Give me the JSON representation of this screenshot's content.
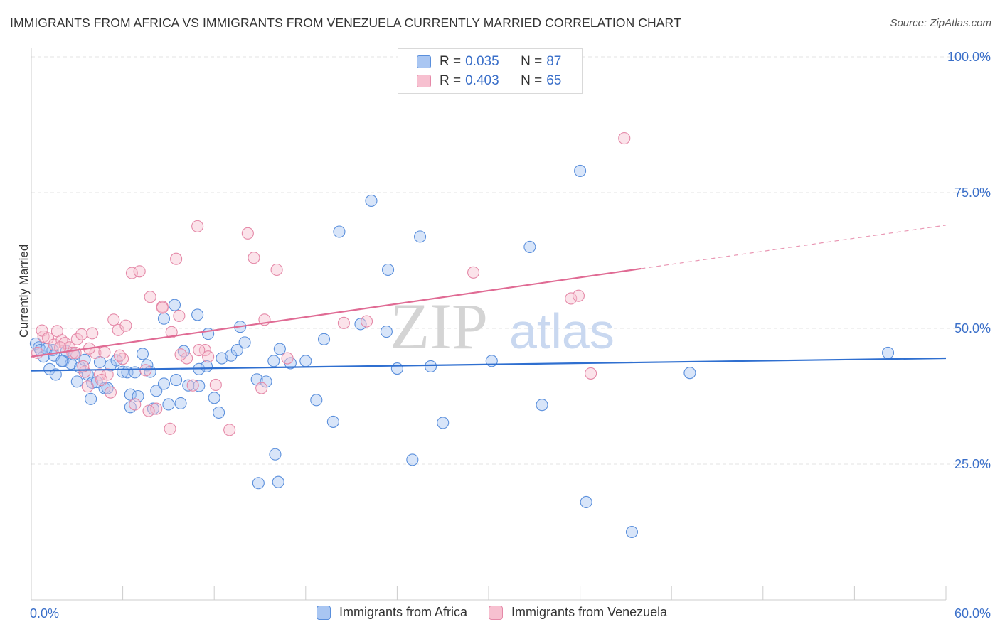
{
  "header": {
    "title": "IMMIGRANTS FROM AFRICA VS IMMIGRANTS FROM VENEZUELA CURRENTLY MARRIED CORRELATION CHART",
    "source_label": "Source: ZipAtlas.com"
  },
  "watermark": {
    "part1": "ZIP",
    "part2": "atlas"
  },
  "legend_top": {
    "rows": [
      {
        "r_label": "R = ",
        "r_value": "0.035",
        "n_label": "N = ",
        "n_value": "87",
        "color": "#a9c6f2",
        "border": "#5a8fdc"
      },
      {
        "r_label": "R = ",
        "r_value": "0.403",
        "n_label": "N = ",
        "n_value": "65",
        "color": "#f7c0d0",
        "border": "#e589a8"
      }
    ]
  },
  "legend_bottom": [
    {
      "label": "Immigrants from Africa",
      "color": "#a9c6f2",
      "border": "#5a8fdc"
    },
    {
      "label": "Immigrants from Venezuela",
      "color": "#f7c0d0",
      "border": "#e589a8"
    }
  ],
  "chart_data": {
    "type": "scatter",
    "ylabel": "Currently Married",
    "xlim": [
      0,
      60
    ],
    "ylim": [
      0,
      100
    ],
    "x_tick_labels": [
      "0.0%",
      "60.0%"
    ],
    "y_ticks": [
      25,
      50,
      75,
      100
    ],
    "y_tick_labels": [
      "25.0%",
      "50.0%",
      "75.0%",
      "100.0%"
    ],
    "grid": true,
    "legend_position": "top-center",
    "series": [
      {
        "name": "Immigrants from Africa",
        "color": "#5a8fdc",
        "fill": "#a9c6f2",
        "trend": {
          "x0": 0,
          "y0": 42.2,
          "x1": 60,
          "y1": 44.5,
          "color": "#2f6fd0"
        },
        "points": [
          [
            0.3,
            47.2
          ],
          [
            0.5,
            46.5
          ],
          [
            0.8,
            44.8
          ],
          [
            0.6,
            46.0
          ],
          [
            1.4,
            46.0
          ],
          [
            1.2,
            42.5
          ],
          [
            2.1,
            44.0
          ],
          [
            2.3,
            45.8
          ],
          [
            1.6,
            41.5
          ],
          [
            2.6,
            43.5
          ],
          [
            3.2,
            42.8
          ],
          [
            3.5,
            44.2
          ],
          [
            2.8,
            45.2
          ],
          [
            3.0,
            40.2
          ],
          [
            3.7,
            41.5
          ],
          [
            4.0,
            40.0
          ],
          [
            3.9,
            37.0
          ],
          [
            4.5,
            43.8
          ],
          [
            4.8,
            39.0
          ],
          [
            4.3,
            40.1
          ],
          [
            5.2,
            43.2
          ],
          [
            5.6,
            44.1
          ],
          [
            6.0,
            42.0
          ],
          [
            6.3,
            41.9
          ],
          [
            6.5,
            37.8
          ],
          [
            6.8,
            41.9
          ],
          [
            6.5,
            35.5
          ],
          [
            7.0,
            37.5
          ],
          [
            7.3,
            45.3
          ],
          [
            7.6,
            43.2
          ],
          [
            8.2,
            38.5
          ],
          [
            8.0,
            35.2
          ],
          [
            8.7,
            39.8
          ],
          [
            9.0,
            36.0
          ],
          [
            9.8,
            36.2
          ],
          [
            9.5,
            40.5
          ],
          [
            10.0,
            45.8
          ],
          [
            10.3,
            39.5
          ],
          [
            11.0,
            42.5
          ],
          [
            11.5,
            43.0
          ],
          [
            11.0,
            39.4
          ],
          [
            12.0,
            37.2
          ],
          [
            12.5,
            44.5
          ],
          [
            12.3,
            34.5
          ],
          [
            13.1,
            45.0
          ],
          [
            13.5,
            46.0
          ],
          [
            14.0,
            47.4
          ],
          [
            14.8,
            40.6
          ],
          [
            15.4,
            40.2
          ],
          [
            15.9,
            44.0
          ],
          [
            16.3,
            46.2
          ],
          [
            17.0,
            43.6
          ],
          [
            18.0,
            44.0
          ],
          [
            18.7,
            36.8
          ],
          [
            19.2,
            48.0
          ],
          [
            14.9,
            21.5
          ],
          [
            16.2,
            21.7
          ],
          [
            16.0,
            26.8
          ],
          [
            19.8,
            32.8
          ],
          [
            20.2,
            67.8
          ],
          [
            22.3,
            73.5
          ],
          [
            23.4,
            60.8
          ],
          [
            24.0,
            42.6
          ],
          [
            26.2,
            43.0
          ],
          [
            25.5,
            66.9
          ],
          [
            25.0,
            25.8
          ],
          [
            27.0,
            32.6
          ],
          [
            30.2,
            44.0
          ],
          [
            32.7,
            65.0
          ],
          [
            33.5,
            35.9
          ],
          [
            36.0,
            79.0
          ],
          [
            36.4,
            18.0
          ],
          [
            39.4,
            12.5
          ],
          [
            43.2,
            41.8
          ],
          [
            21.6,
            50.8
          ],
          [
            9.4,
            54.3
          ],
          [
            8.7,
            51.8
          ],
          [
            23.3,
            49.4
          ],
          [
            56.2,
            45.5
          ],
          [
            11.6,
            49.0
          ],
          [
            10.9,
            52.5
          ],
          [
            13.7,
            50.3
          ],
          [
            1.0,
            46.2
          ],
          [
            1.5,
            45.0
          ],
          [
            2.0,
            44.0
          ],
          [
            5.0,
            39.0
          ],
          [
            7.8,
            42.0
          ]
        ]
      },
      {
        "name": "Immigrants from Venezuela",
        "color": "#e589a8",
        "fill": "#f7c0d0",
        "trend": {
          "x0": 0,
          "y0": 44.8,
          "x1": 40,
          "y1": 61.0,
          "x2": 60,
          "y2": 69.0,
          "color": "#e06b94"
        },
        "points": [
          [
            0.4,
            45.5
          ],
          [
            0.8,
            48.5
          ],
          [
            0.7,
            49.6
          ],
          [
            1.1,
            48.2
          ],
          [
            1.5,
            47.0
          ],
          [
            1.7,
            49.5
          ],
          [
            2.0,
            47.8
          ],
          [
            2.2,
            47.3
          ],
          [
            2.5,
            46.5
          ],
          [
            2.7,
            45.5
          ],
          [
            3.0,
            48.0
          ],
          [
            3.3,
            48.9
          ],
          [
            3.5,
            42.0
          ],
          [
            3.7,
            39.3
          ],
          [
            4.0,
            49.1
          ],
          [
            4.2,
            45.5
          ],
          [
            4.5,
            41.5
          ],
          [
            4.8,
            45.6
          ],
          [
            5.0,
            41.5
          ],
          [
            5.2,
            38.2
          ],
          [
            5.4,
            51.6
          ],
          [
            5.7,
            49.7
          ],
          [
            6.0,
            44.4
          ],
          [
            6.2,
            50.5
          ],
          [
            6.6,
            60.2
          ],
          [
            7.1,
            60.5
          ],
          [
            7.5,
            42.3
          ],
          [
            7.8,
            55.8
          ],
          [
            8.2,
            35.2
          ],
          [
            8.6,
            54.0
          ],
          [
            8.6,
            53.8
          ],
          [
            9.1,
            31.5
          ],
          [
            9.2,
            49.3
          ],
          [
            9.5,
            62.8
          ],
          [
            9.7,
            52.3
          ],
          [
            10.2,
            44.5
          ],
          [
            10.6,
            39.5
          ],
          [
            10.9,
            68.8
          ],
          [
            11.4,
            46.0
          ],
          [
            11.6,
            44.8
          ],
          [
            12.1,
            39.6
          ],
          [
            13.0,
            31.3
          ],
          [
            14.2,
            67.5
          ],
          [
            14.6,
            63.0
          ],
          [
            15.1,
            39.0
          ],
          [
            15.3,
            51.6
          ],
          [
            16.1,
            60.8
          ],
          [
            16.8,
            44.5
          ],
          [
            20.5,
            51.0
          ],
          [
            22.0,
            51.3
          ],
          [
            29.0,
            60.3
          ],
          [
            35.4,
            55.5
          ],
          [
            35.9,
            56.0
          ],
          [
            36.7,
            41.7
          ],
          [
            38.9,
            85.0
          ],
          [
            2.9,
            45.5
          ],
          [
            3.8,
            46.3
          ],
          [
            1.9,
            46.5
          ],
          [
            6.8,
            36.0
          ],
          [
            7.7,
            34.8
          ],
          [
            9.8,
            45.2
          ],
          [
            11.0,
            46.0
          ],
          [
            4.6,
            40.5
          ],
          [
            3.4,
            43.0
          ],
          [
            5.8,
            45.0
          ]
        ]
      }
    ]
  }
}
